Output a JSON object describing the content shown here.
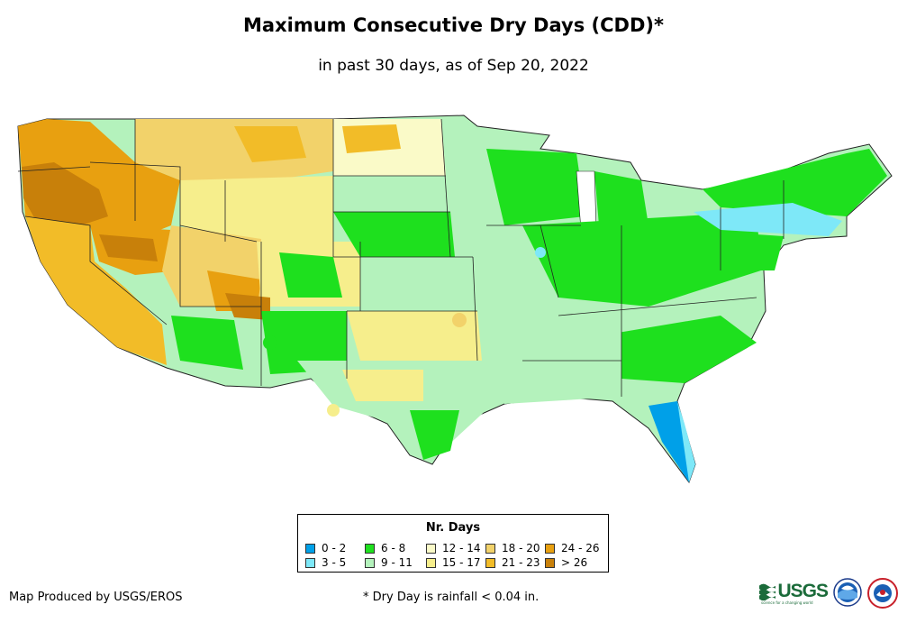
{
  "map": {
    "title": "Maximum Consecutive Dry Days (CDD)*",
    "subtitle": "in past 30 days, as of Sep 20, 2022"
  },
  "legend": {
    "title": "Nr. Days",
    "items": [
      {
        "label": "0 - 2",
        "color": "#00a0e8"
      },
      {
        "label": "3 - 5",
        "color": "#7ee8f8"
      },
      {
        "label": "6 - 8",
        "color": "#1ee01e"
      },
      {
        "label": "9 - 11",
        "color": "#b4f2bc"
      },
      {
        "label": "12 - 14",
        "color": "#fafac8"
      },
      {
        "label": "15 - 17",
        "color": "#f6ee8c"
      },
      {
        "label": "18 - 20",
        "color": "#f2d26a"
      },
      {
        "label": "21 - 23",
        "color": "#f2bc28"
      },
      {
        "label": "24 - 26",
        "color": "#e8a010"
      },
      {
        "label": "> 26",
        "color": "#c8800a"
      }
    ]
  },
  "footer": {
    "credit": "Map Produced by USGS/EROS",
    "footnote": "* Dry Day is rainfall < 0.04 in."
  },
  "logos": {
    "usgs": "USGS",
    "usgs_tagline": "science for a changing world",
    "noaa": "NOAA",
    "nws": "NATIONAL WEATHER SERVICE"
  }
}
